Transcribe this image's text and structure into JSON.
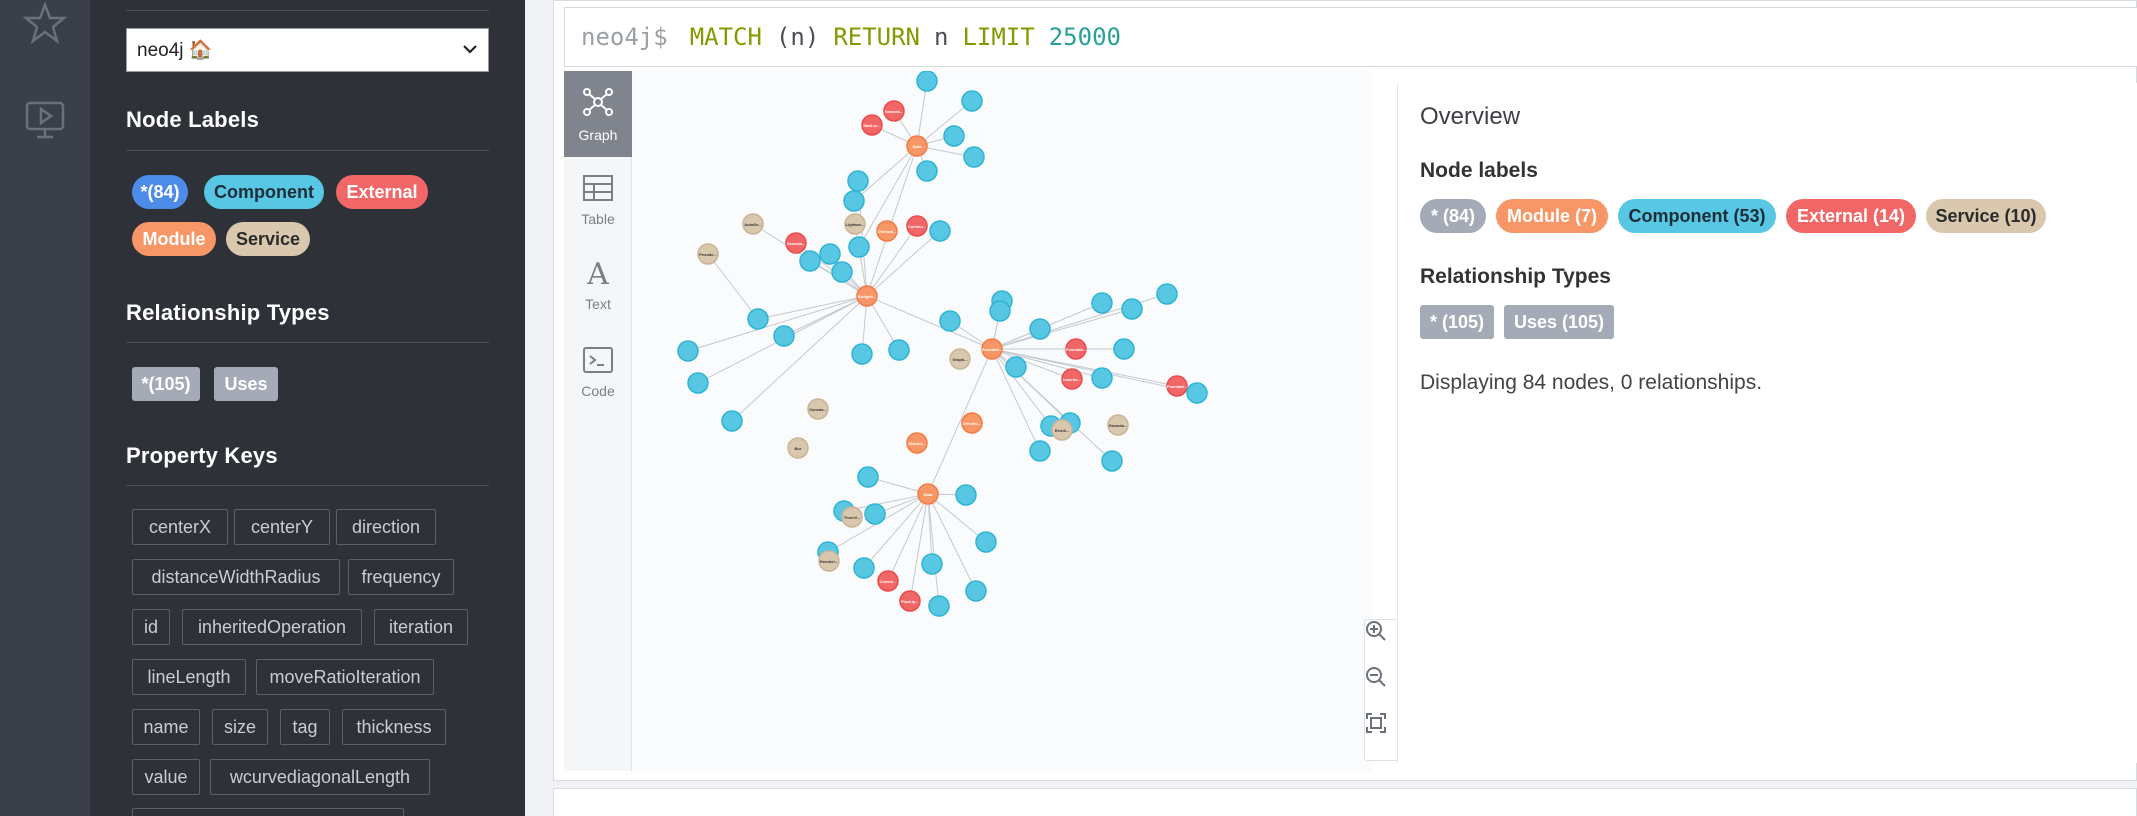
{
  "rail": {
    "icons": [
      "star-icon",
      "play-screen-icon"
    ]
  },
  "sidebar": {
    "database_select": {
      "value": "neo4j 🏠"
    },
    "node_labels": {
      "title": "Node Labels",
      "chips": [
        {
          "label": "*(84)",
          "color": "#4c8be8",
          "text": "#ffffff"
        },
        {
          "label": "Component",
          "color": "#57c7e3",
          "text": "#1f2d3a"
        },
        {
          "label": "External",
          "color": "#f16667",
          "text": "#ffffff"
        },
        {
          "label": "Module",
          "color": "#f79767",
          "text": "#ffffff"
        },
        {
          "label": "Service",
          "color": "#d9c8ae",
          "text": "#2b2b2b"
        }
      ]
    },
    "relationship_types": {
      "title": "Relationship Types",
      "chips": [
        {
          "label": "*(105)"
        },
        {
          "label": "Uses"
        }
      ]
    },
    "property_keys": {
      "title": "Property Keys",
      "keys": [
        "centerX",
        "centerY",
        "direction",
        "distanceWidthRadius",
        "frequency",
        "id",
        "inheritedOperation",
        "iteration",
        "lineLength",
        "moveRatioIteration",
        "name",
        "size",
        "tag",
        "thickness",
        "value",
        "wcurvediagonalLength"
      ]
    }
  },
  "editor": {
    "prompt": "neo4j$",
    "query": {
      "match": "MATCH",
      "var": "(n)",
      "ret": "RETURN",
      "n": "n",
      "limit": "LIMIT",
      "count": "25000"
    }
  },
  "view_tabs": [
    {
      "label": "Graph",
      "icon": "graph-icon",
      "active": true
    },
    {
      "label": "Table",
      "icon": "table-icon",
      "active": false
    },
    {
      "label": "Text",
      "icon": "text-icon",
      "active": false
    },
    {
      "label": "Code",
      "icon": "code-icon",
      "active": false
    }
  ],
  "graph": {
    "node_colors": {
      "Component": "#57c7e3",
      "External": "#f16667",
      "Module": "#f79767",
      "Service": "#d9c8ae"
    },
    "node_text": {
      "Module": [
        "Data\nmodule",
        "Budgeti...",
        "Foundati...",
        "Data\nmodule",
        "Directio...",
        "Metrics...",
        "Orientat..."
      ],
      "External": [
        "Stati.cc...",
        "Granula...",
        "Granula...",
        "Commu...",
        "Foundati...",
        "Foundati...",
        "Insertio...",
        "Commi...",
        "Float.ip...",
        "Granula...",
        "Granula...",
        "Directio...",
        "Insuran...",
        "Intgr.Su..."
      ],
      "Service": [
        "AutoEn...",
        "Pesode...",
        "Lightwo...",
        "Graph...",
        "Canvas...",
        "Bor",
        "ThreeV...",
        "Renderi...",
        "Granula...",
        "Rendi..."
      ]
    }
  },
  "zoom_controls": [
    "zoom-in-icon",
    "zoom-out-icon",
    "fit-screen-icon"
  ],
  "overview": {
    "title": "Overview",
    "node_labels_title": "Node labels",
    "node_chips": [
      {
        "label": "* (84)",
        "color": "#a5abb6",
        "text": "#ffffff"
      },
      {
        "label": "Module (7)",
        "color": "#f79767",
        "text": "#ffffff"
      },
      {
        "label": "Component (53)",
        "color": "#57c7e3",
        "text": "#1f2d3a"
      },
      {
        "label": "External (14)",
        "color": "#f16667",
        "text": "#ffffff"
      },
      {
        "label": "Service (10)",
        "color": "#d9c8ae",
        "text": "#2b2b2b"
      }
    ],
    "rel_types_title": "Relationship Types",
    "rel_chips": [
      {
        "label": "* (105)"
      },
      {
        "label": "Uses (105)"
      }
    ],
    "status": "Displaying 84 nodes, 0 relationships."
  }
}
